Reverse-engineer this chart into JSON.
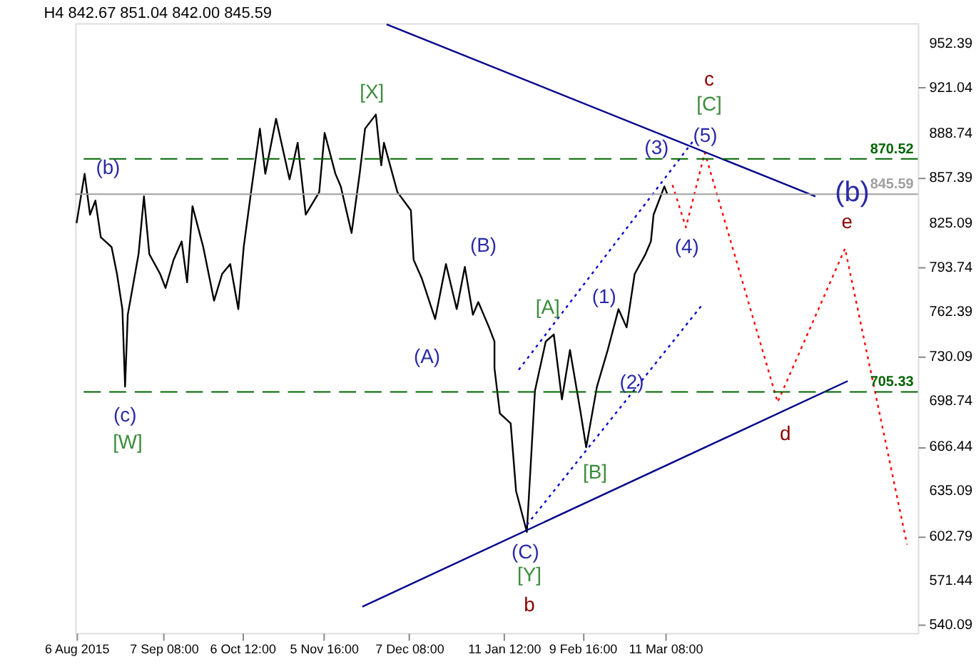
{
  "chart_data": {
    "type": "line",
    "title": "H4  842.67 851.04 842.00 845.59",
    "xlim": [
      "2015-08-05T12:00",
      "2016-06-13"
    ],
    "ylim": [
      534.3,
      966.8
    ],
    "xticks": [
      {
        "value": "2015-08-06",
        "label": "6 Aug 2015"
      },
      {
        "value": "2015-09-07T08:00",
        "label": "7 Sep 08:00"
      },
      {
        "value": "2015-10-06T12:00",
        "label": "6 Oct 12:00"
      },
      {
        "value": "2015-11-05T16:00",
        "label": "5 Nov 16:00"
      },
      {
        "value": "2015-12-07T08:00",
        "label": "7 Dec 08:00"
      },
      {
        "value": "2016-01-11T12:00",
        "label": "11 Jan 12:00"
      },
      {
        "value": "2016-02-09T16:00",
        "label": "9 Feb 16:00"
      },
      {
        "value": "2016-03-11T08:00",
        "label": "11 Mar 08:00"
      }
    ],
    "yticks": [
      952.39,
      921.04,
      888.74,
      857.39,
      825.09,
      793.74,
      762.39,
      730.09,
      698.74,
      666.44,
      635.09,
      602.79,
      571.44,
      540.09
    ],
    "grid": false,
    "series": [
      {
        "color": "#000000",
        "line_style": "solid",
        "x": [
          "2015-08-06",
          "2015-08-09",
          "2015-08-11",
          "2015-08-13",
          "2015-08-15",
          "2015-08-19",
          "2015-08-21",
          "2015-08-23",
          "2015-08-24",
          "2015-08-25",
          "2015-08-29",
          "2015-08-31",
          "2015-09-02",
          "2015-09-06",
          "2015-09-08",
          "2015-09-11",
          "2015-09-14",
          "2015-09-16",
          "2015-09-18",
          "2015-09-22",
          "2015-09-26",
          "2015-09-29",
          "2015-10-02",
          "2015-10-05",
          "2015-10-07",
          "2015-10-10",
          "2015-10-13",
          "2015-10-15",
          "2015-10-19",
          "2015-10-24",
          "2015-10-27",
          "2015-10-30",
          "2015-11-04",
          "2015-11-06",
          "2015-11-10",
          "2015-11-12",
          "2015-11-16",
          "2015-11-19",
          "2015-11-21",
          "2015-11-25",
          "2015-11-27",
          "2015-11-28",
          "2015-12-03",
          "2015-12-08",
          "2015-12-09",
          "2015-12-12",
          "2015-12-17",
          "2015-12-21",
          "2015-12-25",
          "2015-12-28",
          "2015-12-31",
          "2016-01-02",
          "2016-01-06",
          "2016-01-08",
          "2016-01-08",
          "2016-01-10",
          "2016-01-14",
          "2016-01-16",
          "2016-01-20",
          "2016-01-23",
          "2016-01-27",
          "2016-01-30",
          "2016-02-02",
          "2016-02-05",
          "2016-02-09",
          "2016-02-11",
          "2016-02-15",
          "2016-02-19",
          "2016-02-23",
          "2016-02-26",
          "2016-02-29",
          "2016-03-04",
          "2016-03-06",
          "2016-03-07",
          "2016-03-09",
          "2016-03-11",
          "2016-03-12"
        ],
        "values": [
          825,
          860,
          831,
          841,
          815,
          808,
          789,
          764,
          709,
          760,
          803,
          844,
          803,
          789,
          779,
          799,
          812,
          783,
          837,
          808,
          770,
          789,
          796,
          764,
          808,
          851,
          892,
          860,
          899,
          856,
          882,
          831,
          847,
          889,
          860,
          851,
          818,
          860,
          892,
          902,
          866,
          882,
          847,
          834,
          799,
          786,
          757,
          796,
          764,
          794,
          760,
          769,
          751,
          741,
          722,
          690,
          683,
          635,
          606,
          706,
          741,
          746,
          700,
          735,
          690,
          666,
          709,
          735,
          764,
          751,
          789,
          803,
          812,
          831,
          841,
          851,
          846
        ]
      },
      {
        "color": "#ff0000",
        "line_style": "dotted",
        "x": [
          "2016-03-14",
          "2016-03-19",
          "2016-03-26",
          "2016-04-22",
          "2016-05-17",
          "2016-06-09"
        ],
        "values": [
          852,
          822,
          875,
          698,
          807,
          597
        ]
      },
      {
        "color": "#00008b",
        "line_style": "solid",
        "x": [
          "2015-11-29",
          "2016-05-06"
        ],
        "values": [
          966,
          844
        ]
      },
      {
        "color": "#00008b",
        "line_style": "solid",
        "x": [
          "2015-11-20",
          "2016-05-18"
        ],
        "values": [
          553,
          713
        ]
      },
      {
        "color": "#0000cd",
        "line_style": "dotted",
        "x": [
          "2016-01-17",
          "2016-03-22"
        ],
        "values": [
          721,
          884
        ]
      },
      {
        "color": "#0000cd",
        "line_style": "dotted",
        "x": [
          "2016-01-20",
          "2016-03-25"
        ],
        "values": [
          611,
          767
        ]
      }
    ],
    "ref_lines": [
      {
        "axis": "y",
        "value": 870.52,
        "label": "870.52",
        "color": "#006400",
        "line_style": "dashed"
      },
      {
        "axis": "y",
        "value": 845.59,
        "label": "845.59",
        "color": "#a0a0a0",
        "line_style": "solid"
      },
      {
        "axis": "y",
        "value": 705.33,
        "label": "705.33",
        "color": "#006400",
        "line_style": "dashed"
      }
    ],
    "annotations": [
      "(b)",
      "(c)",
      "[W]",
      "[X]",
      "(B)",
      "(A)",
      "[A]",
      "(1)",
      "(C)",
      "[Y]",
      "b",
      "[B]",
      "(2)",
      "(3)",
      "(4)",
      "(5)",
      "[C]",
      "c",
      "(b)",
      "e",
      "d"
    ]
  }
}
